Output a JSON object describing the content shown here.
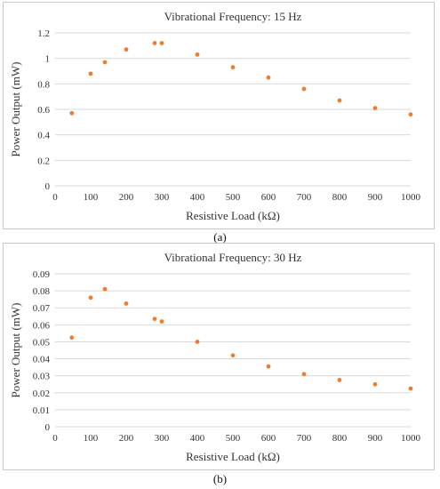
{
  "chart_data": [
    {
      "type": "scatter",
      "title": "Vibrational Frequency: 15 Hz",
      "xlabel": "Resistive Load (kΩ)",
      "ylabel": "Power Output (mW)",
      "xlim": [
        0,
        1000
      ],
      "ylim": [
        0,
        1.2
      ],
      "xticks": [
        0,
        100,
        200,
        300,
        400,
        500,
        600,
        700,
        800,
        900,
        1000
      ],
      "yticks": [
        "0",
        "0.2",
        "0.4",
        "0.6",
        "0.8",
        "1",
        "1.2"
      ],
      "grid": true,
      "marker_color": "#ED7D31",
      "x": [
        47,
        100,
        140,
        200,
        280,
        300,
        400,
        500,
        600,
        700,
        800,
        900,
        1000
      ],
      "y": [
        0.57,
        0.88,
        0.97,
        1.07,
        1.12,
        1.12,
        1.03,
        0.93,
        0.85,
        0.76,
        0.67,
        0.61,
        0.56
      ]
    },
    {
      "type": "scatter",
      "title": "Vibrational Frequency: 30 Hz",
      "xlabel": "Resistive Load (kΩ)",
      "ylabel": "Power Output (mW)",
      "xlim": [
        0,
        1000
      ],
      "ylim": [
        0,
        0.09
      ],
      "xticks": [
        0,
        100,
        200,
        300,
        400,
        500,
        600,
        700,
        800,
        900,
        1000
      ],
      "yticks": [
        "0",
        "0.01",
        "0.02",
        "0.03",
        "0.04",
        "0.05",
        "0.06",
        "0.07",
        "0.08",
        "0.09"
      ],
      "grid": true,
      "marker_color": "#ED7D31",
      "x": [
        47,
        100,
        140,
        200,
        280,
        300,
        400,
        500,
        600,
        700,
        800,
        900,
        1000
      ],
      "y": [
        0.0525,
        0.076,
        0.081,
        0.0725,
        0.0635,
        0.062,
        0.05,
        0.042,
        0.0355,
        0.031,
        0.0275,
        0.025,
        0.0225
      ]
    }
  ],
  "captions": {
    "a": "(a)",
    "b": "(b)"
  }
}
